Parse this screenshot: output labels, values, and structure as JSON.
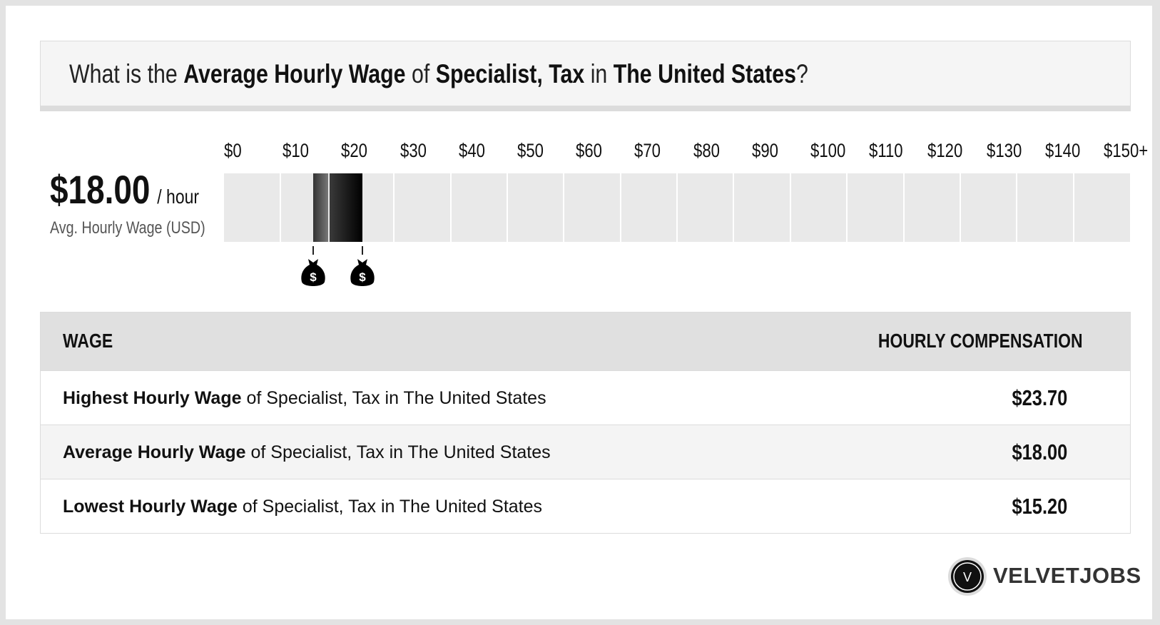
{
  "title": {
    "prefix": "What is the ",
    "metric": "Average Hourly Wage",
    "of": " of ",
    "job": "Specialist, Tax",
    "in": " in ",
    "location": "The United States",
    "suffix": "?"
  },
  "summary": {
    "value": "$18.00",
    "unit": "/ hour",
    "caption": "Avg. Hourly Wage (USD)"
  },
  "scale": {
    "ticks": [
      "$0",
      "$10",
      "$20",
      "$30",
      "$40",
      "$50",
      "$60",
      "$70",
      "$80",
      "$90",
      "$100",
      "$110",
      "$120",
      "$130",
      "$140",
      "$150+"
    ],
    "range": [
      0,
      155
    ],
    "low_value": 15.2,
    "avg_value": 18.0,
    "high_value": 23.7,
    "marker_icon": "money-bag-icon",
    "marker_symbol": "$"
  },
  "table": {
    "header_left": "WAGE",
    "header_right": "HOURLY COMPENSATION",
    "rows": [
      {
        "bold": "Highest Hourly Wage",
        "rest": " of Specialist, Tax in The United States",
        "value": "$23.70"
      },
      {
        "bold": "Average Hourly Wage",
        "rest": " of Specialist, Tax in The United States",
        "value": "$18.00"
      },
      {
        "bold": "Lowest Hourly Wage",
        "rest": " of Specialist, Tax in The United States",
        "value": "$15.20"
      }
    ]
  },
  "logo": {
    "letter": "V",
    "name": "VELVETJOBS"
  },
  "colors": {
    "track": "#e9e9e9",
    "fill_dark": "#111111",
    "fill_mid": "#555555",
    "header_bg": "#e0e0e0"
  }
}
